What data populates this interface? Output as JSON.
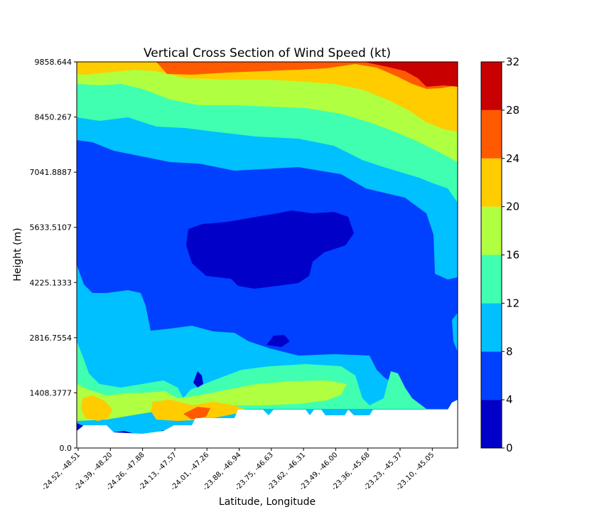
{
  "chart_data": {
    "type": "heatmap",
    "title": "Vertical Cross Section of Wind Speed (kt)",
    "xlabel": "Latitude, Longitude",
    "ylabel": "Height (m)",
    "yticks": [
      "0.0",
      "1408.3777",
      "2816.7554",
      "4225.1333",
      "5633.5107",
      "7041.8887",
      "8450.267",
      "9858.644"
    ],
    "ylim": [
      0,
      9858.644
    ],
    "xticks": [
      "-24.52, -48.51",
      "-24.39, -48.20",
      "-24.26, -47.88",
      "-24.13, -47.57",
      "-24.01, -47.26",
      "-23.88, -46.94",
      "-23.75, -46.63",
      "-23.62, -46.31",
      "-23.49, -46.00",
      "-23.36, -45.68",
      "-23.23, -45.37",
      "-23.10, -45.05"
    ],
    "colorbar": {
      "ticks": [
        "0",
        "4",
        "8",
        "12",
        "16",
        "20",
        "24",
        "28",
        "32"
      ],
      "levels": [
        0,
        4,
        8,
        12,
        16,
        20,
        24,
        28,
        32
      ],
      "colors": [
        "#0000c8",
        "#0040ff",
        "#00c0ff",
        "#40ffb0",
        "#b0ff40",
        "#ffcc00",
        "#ff5a00",
        "#c80000"
      ]
    }
  }
}
